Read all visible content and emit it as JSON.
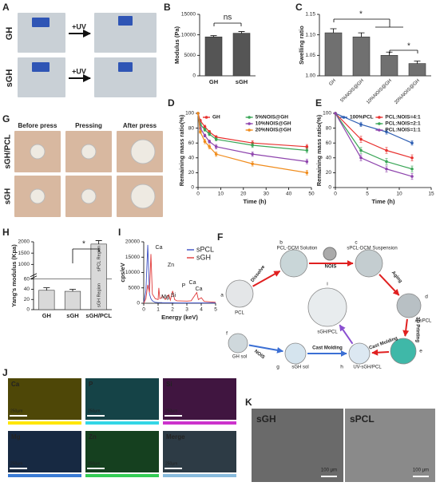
{
  "panel_labels": [
    "A",
    "B",
    "C",
    "D",
    "E",
    "G",
    "H",
    "I",
    "F",
    "J",
    "K"
  ],
  "panel_a": {
    "rows": [
      "GH",
      "sGH"
    ],
    "arrows": [
      "+UV",
      "+UV"
    ]
  },
  "panel_g": {
    "columns": [
      "Before press",
      "Pressing",
      "After press"
    ],
    "rows": [
      "sGH/PCL",
      "sGH"
    ]
  },
  "chart_data": [
    {
      "type": "bar",
      "ylabel": "Modulus (Pa)",
      "categories": [
        "GH",
        "sGH"
      ],
      "values": [
        9500,
        10400
      ],
      "errors": [
        300,
        400
      ],
      "color": "#555555",
      "ylim": [
        0,
        15000
      ],
      "yticks": [
        0,
        5000,
        10000,
        15000
      ],
      "annotations": [
        "ns"
      ]
    },
    {
      "type": "bar",
      "ylabel": "Swelling ratio",
      "categories": [
        "GH",
        "5%NOIS@GH",
        "10%NOIS@GH",
        "20%NOIS@GH"
      ],
      "values": [
        1.105,
        1.095,
        1.05,
        1.03
      ],
      "errors": [
        0.01,
        0.01,
        0.008,
        0.006
      ],
      "color": "#707070",
      "ylim": [
        1.0,
        1.15
      ],
      "yticks": [
        {
          "value": 1.0,
          "label": "1.00"
        },
        {
          "value": 1.05,
          "label": "1.05"
        },
        {
          "value": 1.1,
          "label": "1.10"
        },
        {
          "value": 1.15,
          "label": "1.15"
        }
      ],
      "xtick_rotation": 45,
      "annotations": [
        "*",
        "*"
      ]
    },
    {
      "type": "line",
      "xlabel": "Time (h)",
      "ylabel": "Remaining mass ratio(%)",
      "x": [
        0,
        1,
        3,
        5,
        8,
        24,
        48
      ],
      "xlim": [
        0,
        50
      ],
      "xticks": [
        0,
        10,
        20,
        30,
        40,
        50
      ],
      "ylim": [
        0,
        100
      ],
      "yticks": [
        0,
        20,
        40,
        60,
        80,
        100
      ],
      "markers": true,
      "legend": "top",
      "series": [
        {
          "name": "GH",
          "color": "#e8312f",
          "values": [
            100,
            90,
            82,
            75,
            68,
            60,
            55
          ],
          "errors": [
            0,
            2,
            2,
            2,
            2,
            3,
            3
          ]
        },
        {
          "name": "5%NOIS@GH",
          "color": "#3aa657",
          "values": [
            100,
            85,
            78,
            72,
            65,
            57,
            50
          ],
          "errors": [
            0,
            2,
            2,
            2,
            2,
            3,
            3
          ]
        },
        {
          "name": "10%NOIS@GH",
          "color": "#8e44ad",
          "values": [
            100,
            80,
            70,
            62,
            55,
            45,
            35
          ],
          "errors": [
            0,
            2,
            2,
            2,
            3,
            3,
            3
          ]
        },
        {
          "name": "20%NOIS@GH",
          "color": "#f08c1c",
          "values": [
            100,
            75,
            62,
            55,
            45,
            32,
            20
          ],
          "errors": [
            0,
            2,
            3,
            3,
            3,
            3,
            3
          ]
        }
      ]
    },
    {
      "type": "line",
      "xlabel": "Time (h)",
      "ylabel": "Remaining mass ratio(%)",
      "x": [
        0,
        4,
        8,
        12
      ],
      "xlim": [
        0,
        15
      ],
      "xticks": [
        0,
        5,
        10,
        15
      ],
      "ylim": [
        0,
        100
      ],
      "yticks": [
        0,
        20,
        40,
        60,
        80,
        100
      ],
      "markers": true,
      "legend": "top",
      "series": [
        {
          "name": "100%PCL",
          "color": "#2f5fb3",
          "values": [
            100,
            85,
            75,
            60
          ],
          "errors": [
            0,
            3,
            3,
            3
          ]
        },
        {
          "name": "PCL:NOIS=4:1",
          "color": "#e8312f",
          "values": [
            100,
            65,
            50,
            40
          ],
          "errors": [
            0,
            4,
            4,
            4
          ]
        },
        {
          "name": "PCL:NOIS=2:1",
          "color": "#3aa657",
          "values": [
            100,
            50,
            35,
            25
          ],
          "errors": [
            0,
            4,
            4,
            4
          ]
        },
        {
          "name": "PCL:NOIS=1:1",
          "color": "#8e44ad",
          "values": [
            100,
            40,
            25,
            15
          ],
          "errors": [
            0,
            4,
            4,
            4
          ]
        }
      ]
    },
    {
      "type": "bar",
      "ylabel": "Yang's modulus (Kpa)",
      "categories": [
        "GH",
        "sGH",
        "sGH/PCL"
      ],
      "values": [
        38,
        36,
        1900
      ],
      "errors": [
        5,
        4,
        150
      ],
      "color": "#d9d9d9",
      "ylim": [
        0,
        2000
      ],
      "ybreak": [
        60,
        500
      ],
      "yticks": [
        0,
        20,
        40,
        60,
        1000,
        1500,
        2000
      ],
      "annotations": [
        "*",
        "sPCL Region",
        "sGH Region"
      ]
    },
    {
      "type": "line",
      "xlabel": "Energy (keV)",
      "ylabel": "cps/eV",
      "x": [
        0,
        0.15,
        0.28,
        0.4,
        0.5,
        0.6,
        0.8,
        1.0,
        1.05,
        1.12,
        1.25,
        1.3,
        1.5,
        1.74,
        1.85,
        2.01,
        2.15,
        2.3,
        3.0,
        3.3,
        3.69,
        3.8,
        4.01,
        4.2,
        5
      ],
      "xlim": [
        0,
        5
      ],
      "xticks": [
        0,
        1,
        2,
        3,
        4,
        5
      ],
      "ylim": [
        0,
        20000
      ],
      "yticks": [
        0,
        5000,
        10000,
        15000,
        20000
      ],
      "markers": false,
      "legend": "upper right",
      "series": [
        {
          "name": "sPCL",
          "color": "#3b4fc4",
          "values": [
            0,
            4000,
            19000,
            3000,
            1500,
            800,
            300,
            200,
            200,
            200,
            200,
            150,
            150,
            150,
            150,
            150,
            100,
            100,
            100,
            100,
            100,
            100,
            100,
            100,
            100
          ]
        },
        {
          "name": "sGH",
          "color": "#e03a3a",
          "values": [
            0,
            1500,
            6000,
            3500,
            16000,
            3000,
            1500,
            1200,
            5000,
            1500,
            1800,
            2500,
            1200,
            2800,
            1000,
            4000,
            1200,
            800,
            700,
            800,
            3500,
            1200,
            1800,
            600,
            300
          ]
        }
      ],
      "annotations": [
        "Ca",
        "Zn",
        "Mg",
        "Si",
        "P",
        "Ca",
        "Ca"
      ]
    }
  ],
  "diagram": {
    "nodes": [
      {
        "letter": "a",
        "label": "PCL"
      },
      {
        "letter": "b",
        "label": "PCL-DCM Solution"
      },
      {
        "letter": "c",
        "label": "sPCL-DCM Suspension"
      },
      {
        "letter": "d",
        "label": "A-sPCL"
      },
      {
        "letter": "e"
      },
      {
        "letter": "f",
        "label": "GH sol"
      },
      {
        "letter": "g",
        "label": "sGH sol"
      },
      {
        "letter": "h",
        "label": "UV-sGH/PCL"
      },
      {
        "letter": "i",
        "label": "sGH/PCL"
      }
    ],
    "arrows": [
      "Dissolve",
      "NOIS",
      "Aging",
      "3D Printing",
      "Cast Molding",
      "NOIS",
      "Cast Molding"
    ]
  },
  "panel_j": {
    "maps": [
      "Ca",
      "P",
      "Si",
      "Mg",
      "Zn",
      "Merge"
    ],
    "scale": "250μm"
  },
  "panel_k": {
    "images": [
      "sGH",
      "sPCL"
    ],
    "scale": "100 μm"
  }
}
